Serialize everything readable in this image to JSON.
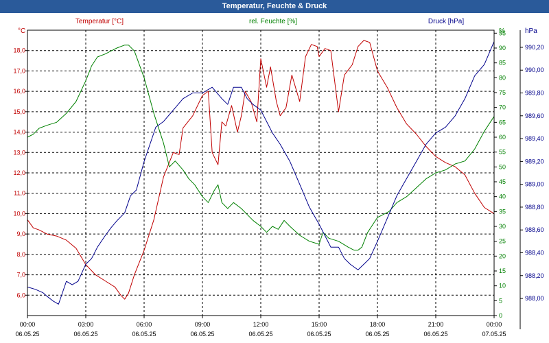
{
  "chart_data": {
    "type": "line",
    "title": "Temperatur, Feuchte & Druck",
    "x_ticks": [
      {
        "time": "00:00",
        "date": "06.05.25"
      },
      {
        "time": "03:00",
        "date": "06.05.25"
      },
      {
        "time": "06:00",
        "date": "06.05.25"
      },
      {
        "time": "09:00",
        "date": "06.05.25"
      },
      {
        "time": "12:00",
        "date": "06.05.25"
      },
      {
        "time": "15:00",
        "date": "06.05.25"
      },
      {
        "time": "18:00",
        "date": "06.05.25"
      },
      {
        "time": "21:00",
        "date": "06.05.25"
      },
      {
        "time": "00:00",
        "date": "07.05.25"
      }
    ],
    "xlim_hours": [
      0,
      24
    ],
    "grid": true,
    "axes": [
      {
        "id": "temp",
        "label": "Temperatur [°C]",
        "unit": "°C",
        "color": "#c00000",
        "side": "left",
        "ylim": [
          5.0,
          19.0
        ],
        "ticks": [
          "6,0",
          "7,0",
          "8,0",
          "9,0",
          "10,0",
          "11,0",
          "12,0",
          "13,0",
          "14,0",
          "15,0",
          "16,0",
          "17,0",
          "18,0"
        ]
      },
      {
        "id": "hum",
        "label": "rel. Feuchte [%]",
        "unit": "%",
        "color": "#008000",
        "side": "right",
        "ylim": [
          0,
          96
        ],
        "ticks": [
          "0",
          "5",
          "10",
          "15",
          "20",
          "25",
          "30",
          "35",
          "40",
          "45",
          "50",
          "55",
          "60",
          "65",
          "70",
          "75",
          "80",
          "85",
          "90",
          "95"
        ]
      },
      {
        "id": "press",
        "label": "Druck [hPa]",
        "unit": "hPa",
        "color": "#00008b",
        "side": "right-outer",
        "ylim": [
          987.85,
          990.35
        ],
        "ticks": [
          "988,00",
          "988,20",
          "988,40",
          "988,60",
          "988,80",
          "989,00",
          "989,20",
          "989,40",
          "989,60",
          "989,80",
          "990,00",
          "990,20"
        ]
      }
    ],
    "series": [
      {
        "name": "Temperatur",
        "axis": "temp",
        "color": "#c00000",
        "x": [
          0,
          0.3,
          0.6,
          1,
          1.5,
          2,
          2.5,
          3,
          3.5,
          4,
          4.5,
          4.8,
          5,
          5.2,
          5.5,
          6,
          6.5,
          7,
          7.5,
          7.8,
          8,
          8.5,
          9,
          9.3,
          9.5,
          9.8,
          10,
          10.2,
          10.5,
          10.8,
          11,
          11.2,
          11.5,
          11.8,
          12,
          12.3,
          12.5,
          12.8,
          13,
          13.3,
          13.6,
          14,
          14.3,
          14.6,
          14.9,
          15,
          15.3,
          15.6,
          16,
          16.3,
          16.7,
          17,
          17.3,
          17.6,
          18,
          18.5,
          19,
          19.5,
          20,
          20.5,
          21,
          21.5,
          22,
          22.5,
          23,
          23.5,
          24
        ],
        "values": [
          9.7,
          9.3,
          9.2,
          9.0,
          8.9,
          8.7,
          8.3,
          7.5,
          7.0,
          6.7,
          6.4,
          6.0,
          5.8,
          6.1,
          7.0,
          8.2,
          9.7,
          11.8,
          13.0,
          12.9,
          14.2,
          14.8,
          15.8,
          16.0,
          13.0,
          12.4,
          14.5,
          14.3,
          15.3,
          14.0,
          14.8,
          16.0,
          15.5,
          14.5,
          17.6,
          16.2,
          17.2,
          15.5,
          14.8,
          15.2,
          16.8,
          15.5,
          17.7,
          18.3,
          18.2,
          17.7,
          18.1,
          18.0,
          15.0,
          16.8,
          17.3,
          18.2,
          18.5,
          18.4,
          17.0,
          16.2,
          15.2,
          14.4,
          13.9,
          13.3,
          12.8,
          12.5,
          12.3,
          11.9,
          11.0,
          10.3,
          10.0
        ]
      },
      {
        "name": "rel. Feuchte",
        "axis": "hum",
        "color": "#008000",
        "x": [
          0,
          0.3,
          0.6,
          1,
          1.5,
          2,
          2.5,
          3,
          3.3,
          3.6,
          4,
          4.3,
          4.6,
          5,
          5.2,
          5.5,
          6,
          6.5,
          7,
          7.3,
          7.6,
          8,
          8.3,
          8.6,
          9,
          9.3,
          9.6,
          9.8,
          10,
          10.3,
          10.6,
          11,
          11.3,
          11.6,
          12,
          12.3,
          12.6,
          12.9,
          13.2,
          13.5,
          14,
          14.5,
          15,
          15.2,
          15.5,
          16,
          16.5,
          16.8,
          17,
          17.2,
          17.5,
          18,
          18.3,
          18.6,
          19,
          19.5,
          20,
          20.5,
          21,
          21.5,
          22,
          22.5,
          23,
          23.5,
          24
        ],
        "values": [
          60,
          61,
          63,
          64,
          65,
          68,
          72,
          79,
          84,
          87,
          88,
          89,
          90,
          91,
          91,
          89,
          80,
          68,
          58,
          50,
          52,
          49,
          46,
          44,
          40,
          38,
          42,
          44,
          38,
          36,
          38,
          36,
          34,
          32,
          30,
          28,
          30,
          29,
          32,
          30,
          27,
          25,
          24,
          28,
          26,
          25,
          23,
          22,
          22,
          23,
          28,
          33,
          34,
          35,
          38,
          40,
          43,
          46,
          48,
          49,
          51,
          52,
          56,
          62,
          67
        ]
      },
      {
        "name": "Druck",
        "axis": "press",
        "color": "#00008b",
        "x": [
          0,
          0.4,
          0.8,
          1,
          1.3,
          1.6,
          2,
          2.3,
          2.6,
          3,
          3.3,
          3.6,
          4,
          4.3,
          4.6,
          5,
          5.3,
          5.6,
          6,
          6.3,
          6.6,
          7,
          7.5,
          8,
          8.5,
          9,
          9.5,
          10,
          10.3,
          10.6,
          11,
          11.3,
          11.6,
          12,
          12.3,
          12.6,
          13,
          13.5,
          14,
          14.5,
          15,
          15.3,
          15.6,
          16,
          16.3,
          16.6,
          17,
          17.3,
          17.6,
          18,
          18.5,
          19,
          19.5,
          20,
          20.5,
          21,
          21.5,
          22,
          22.5,
          23,
          23.5,
          24
        ],
        "values": [
          988.1,
          988.08,
          988.05,
          988.02,
          987.98,
          987.95,
          988.15,
          988.12,
          988.15,
          988.3,
          988.35,
          988.45,
          988.55,
          988.62,
          988.68,
          988.75,
          988.9,
          988.95,
          989.2,
          989.35,
          989.5,
          989.55,
          989.65,
          989.75,
          989.8,
          989.8,
          989.85,
          989.75,
          989.7,
          989.85,
          989.85,
          989.75,
          989.7,
          989.65,
          989.55,
          989.45,
          989.35,
          989.2,
          989.0,
          988.8,
          988.65,
          988.55,
          988.45,
          988.45,
          988.35,
          988.3,
          988.25,
          988.3,
          988.35,
          988.5,
          988.7,
          988.9,
          989.05,
          989.2,
          989.35,
          989.45,
          989.5,
          989.6,
          989.75,
          989.95,
          990.05,
          990.25
        ]
      }
    ]
  }
}
